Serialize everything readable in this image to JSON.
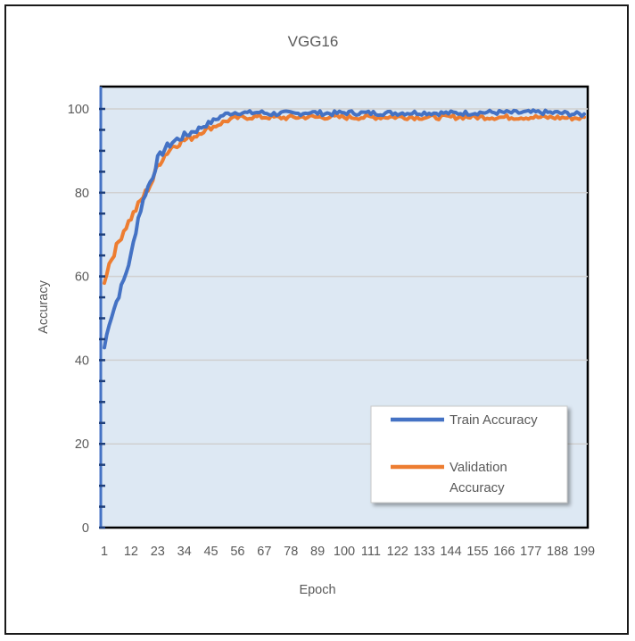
{
  "chart_data": {
    "type": "line",
    "title": "VGG16",
    "xlabel": "Epoch",
    "ylabel": "Accuracy",
    "ylim": [
      0,
      100
    ],
    "yticks": [
      0,
      20,
      40,
      60,
      80,
      100
    ],
    "xticks": [
      1,
      12,
      23,
      34,
      45,
      56,
      67,
      78,
      89,
      100,
      111,
      122,
      133,
      144,
      155,
      166,
      177,
      188,
      199
    ],
    "xlim": [
      1,
      199
    ],
    "grid": true,
    "legend_position": "bottom-right",
    "colors": {
      "plot_bg": "#dde8f3",
      "train": "#4472c4",
      "validation": "#ed7d31",
      "grid": "#d0d0d0"
    },
    "series": [
      {
        "name": "Train Accuracy",
        "x": [
          1,
          3,
          6,
          9,
          12,
          15,
          18,
          21,
          23,
          26,
          29,
          32,
          35,
          38,
          41,
          44,
          47,
          50,
          53,
          56,
          60,
          65,
          70,
          75,
          80,
          85,
          90,
          95,
          100,
          110,
          120,
          130,
          140,
          150,
          160,
          170,
          180,
          190,
          199
        ],
        "y": [
          43,
          49,
          54,
          59,
          65,
          74,
          80,
          84,
          88,
          90.5,
          92,
          93,
          93.8,
          94.8,
          95.6,
          96.5,
          97.5,
          98.5,
          99,
          99.2,
          99,
          99.2,
          98.8,
          99,
          98.8,
          99.2,
          99,
          98.9,
          99.1,
          99,
          99,
          99.1,
          99,
          99,
          99.2,
          99.1,
          99.2,
          99,
          98.6
        ]
      },
      {
        "name": "Validation Accuracy",
        "x": [
          1,
          3,
          6,
          9,
          12,
          15,
          18,
          21,
          23,
          26,
          29,
          32,
          35,
          38,
          41,
          44,
          47,
          50,
          53,
          56,
          60,
          65,
          70,
          75,
          80,
          85,
          90,
          95,
          100,
          110,
          120,
          130,
          140,
          150,
          160,
          170,
          180,
          190,
          199
        ],
        "y": [
          59,
          63,
          67,
          71,
          74,
          77,
          80,
          83,
          86.5,
          89,
          91,
          92,
          92.8,
          93.5,
          94.5,
          95.3,
          96,
          96.8,
          97.5,
          97.9,
          98,
          98.1,
          98,
          97.9,
          98,
          98.1,
          98,
          98.1,
          98,
          98,
          98.1,
          98,
          98,
          98.1,
          98,
          98,
          98,
          97.9,
          97.8
        ]
      }
    ]
  }
}
